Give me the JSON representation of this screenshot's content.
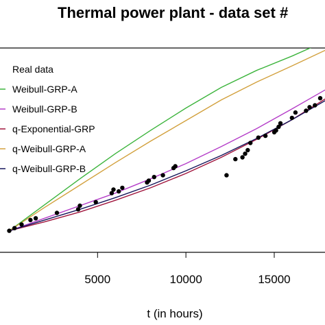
{
  "chart_data": {
    "type": "line",
    "title": "Thermal power plant - data set #",
    "xlabel": "t (in hours)",
    "ylabel": "",
    "xlim": [
      -600,
      17950
    ],
    "ylim": [
      -1.2,
      10.2
    ],
    "xticks": [
      5000,
      10000,
      15000
    ],
    "xtick_labels": [
      "5000",
      "10000",
      "15000"
    ],
    "grid": false,
    "legend_position": "top-left",
    "legend": [
      {
        "name": "Real data",
        "color": "#000000",
        "kind": "point"
      },
      {
        "name": "Weibull-GRP-A",
        "color": "#3cb43c",
        "kind": "line"
      },
      {
        "name": "Weibull-GRP-B",
        "color": "#b43cc8",
        "kind": "line"
      },
      {
        "name": "q-Exponential-GRP",
        "color": "#a0143c",
        "kind": "line"
      },
      {
        "name": "q-Weibull-GRP-A",
        "color": "#d2a03c",
        "kind": "line"
      },
      {
        "name": "q-Weibull-GRP-B",
        "color": "#14145a",
        "kind": "line"
      }
    ],
    "series": [
      {
        "name": "Real data",
        "color": "#000000",
        "kind": "points",
        "x": [
          0,
          300,
          700,
          1200,
          1500,
          2700,
          3900,
          4000,
          4900,
          5800,
          5900,
          6200,
          6400,
          7800,
          7900,
          8200,
          8700,
          9300,
          9400,
          12300,
          12800,
          13200,
          13350,
          13500,
          13650,
          14100,
          14500,
          15000,
          15100,
          15250,
          15350,
          16000,
          16200,
          16800,
          17000,
          17300,
          17600
        ],
        "y": [
          0,
          0.15,
          0.35,
          0.6,
          0.7,
          1.0,
          1.2,
          1.4,
          1.6,
          2.1,
          2.3,
          2.2,
          2.4,
          2.7,
          2.8,
          3.0,
          3.1,
          3.5,
          3.6,
          3.1,
          4.0,
          4.1,
          4.3,
          4.5,
          4.9,
          5.2,
          5.3,
          5.5,
          5.6,
          5.8,
          6.0,
          6.3,
          6.6,
          6.7,
          6.9,
          7.0,
          7.4
        ]
      },
      {
        "name": "Weibull-GRP-A",
        "color": "#3cb43c",
        "kind": "line",
        "x": [
          0,
          2000,
          4000,
          6000,
          8000,
          10000,
          12000,
          14000,
          16000,
          17950
        ],
        "y": [
          0,
          1.45,
          2.9,
          4.3,
          5.6,
          6.85,
          8.0,
          8.95,
          9.75,
          10.6
        ]
      },
      {
        "name": "Weibull-GRP-B",
        "color": "#b43cc8",
        "kind": "line",
        "x": [
          0,
          2000,
          4000,
          6000,
          8000,
          10000,
          12000,
          14000,
          16000,
          17950
        ],
        "y": [
          0,
          0.7,
          1.4,
          2.1,
          2.9,
          3.75,
          4.7,
          5.7,
          6.8,
          7.9
        ]
      },
      {
        "name": "q-Exponential-GRP",
        "color": "#a0143c",
        "kind": "line",
        "x": [
          0,
          2000,
          4000,
          6000,
          8000,
          10000,
          12000,
          14000,
          16000,
          17950
        ],
        "y": [
          0,
          0.5,
          1.05,
          1.7,
          2.4,
          3.2,
          4.1,
          5.1,
          6.2,
          7.4
        ]
      },
      {
        "name": "q-Weibull-GRP-A",
        "color": "#d2a03c",
        "kind": "line",
        "x": [
          0,
          2000,
          4000,
          6000,
          8000,
          10000,
          12000,
          14000,
          16000,
          17950
        ],
        "y": [
          0,
          1.3,
          2.55,
          3.8,
          5.0,
          6.15,
          7.3,
          8.3,
          9.2,
          10.1
        ]
      },
      {
        "name": "q-Weibull-GRP-B",
        "color": "#14145a",
        "kind": "line",
        "x": [
          0,
          2000,
          4000,
          6000,
          8000,
          10000,
          12000,
          14000,
          16000,
          17950
        ],
        "y": [
          0,
          0.6,
          1.2,
          1.85,
          2.55,
          3.35,
          4.2,
          5.15,
          6.2,
          7.3
        ]
      }
    ]
  }
}
